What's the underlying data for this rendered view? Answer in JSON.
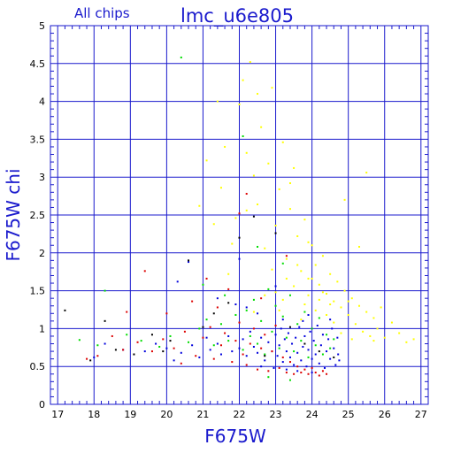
{
  "chart_data": {
    "type": "scatter",
    "subtitle": "All chips",
    "title": "lmc_u6e805",
    "xlabel": "F675W",
    "ylabel": "F675W chi",
    "xlim": [
      16.8,
      27.2
    ],
    "ylim": [
      0,
      5
    ],
    "xticks": [
      17,
      18,
      19,
      20,
      21,
      22,
      23,
      24,
      25,
      26,
      27
    ],
    "yticks": [
      0,
      0.5,
      1,
      1.5,
      2,
      2.5,
      3,
      3.5,
      4,
      4.5,
      5
    ],
    "ytick_labels": [
      "0",
      "0.5",
      "1",
      "1.5",
      "2",
      "2.5",
      "3",
      "3.5",
      "4",
      "4.5",
      "5"
    ],
    "grid": true,
    "colors": {
      "frame": "#1a1acd",
      "grid": "#1a1acd",
      "text": "#1a1acd",
      "series": [
        "#0000dd",
        "#00dd00",
        "#dd0000",
        "#ffff00",
        "#000000"
      ]
    },
    "series": [
      {
        "color": "#0000dd",
        "points": [
          [
            18.0,
            0.62
          ],
          [
            18.3,
            0.8
          ],
          [
            18.8,
            0.72
          ],
          [
            19.4,
            0.7
          ],
          [
            19.7,
            0.8
          ],
          [
            20.0,
            0.74
          ],
          [
            20.4,
            0.68
          ],
          [
            20.7,
            0.78
          ],
          [
            20.9,
            0.62
          ],
          [
            21.2,
            0.72
          ],
          [
            21.4,
            0.8
          ],
          [
            21.5,
            0.66
          ],
          [
            21.7,
            0.9
          ],
          [
            21.8,
            0.7
          ],
          [
            22.0,
            0.74
          ],
          [
            22.1,
            0.86
          ],
          [
            22.2,
            0.64
          ],
          [
            22.3,
            0.96
          ],
          [
            22.4,
            0.76
          ],
          [
            22.5,
            0.68
          ],
          [
            22.6,
            0.88
          ],
          [
            22.7,
            0.58
          ],
          [
            22.8,
            0.82
          ],
          [
            22.9,
            0.7
          ],
          [
            23.0,
            0.92
          ],
          [
            23.05,
            0.64
          ],
          [
            23.1,
            0.78
          ],
          [
            23.15,
            1.0
          ],
          [
            23.2,
            0.56
          ],
          [
            23.25,
            0.86
          ],
          [
            23.3,
            0.7
          ],
          [
            23.35,
            0.94
          ],
          [
            23.4,
            0.62
          ],
          [
            23.45,
            0.8
          ],
          [
            23.5,
            0.52
          ],
          [
            23.55,
            0.88
          ],
          [
            23.6,
            0.68
          ],
          [
            23.65,
            1.02
          ],
          [
            23.7,
            0.58
          ],
          [
            23.75,
            0.76
          ],
          [
            23.8,
            0.9
          ],
          [
            23.85,
            0.5
          ],
          [
            23.9,
            0.72
          ],
          [
            23.95,
            0.96
          ],
          [
            24.0,
            0.6
          ],
          [
            24.05,
            0.84
          ],
          [
            24.1,
            0.66
          ],
          [
            24.15,
            1.04
          ],
          [
            24.2,
            0.54
          ],
          [
            24.25,
            0.78
          ],
          [
            24.3,
            0.92
          ],
          [
            24.35,
            0.48
          ],
          [
            24.4,
            0.7
          ],
          [
            24.45,
            0.86
          ],
          [
            24.5,
            0.6
          ],
          [
            24.55,
            1.0
          ],
          [
            24.6,
            0.74
          ],
          [
            24.65,
            0.52
          ],
          [
            24.7,
            0.88
          ],
          [
            24.72,
            0.66
          ],
          [
            24.75,
            0.58
          ],
          [
            23.3,
            0.46
          ],
          [
            23.6,
            0.44
          ],
          [
            24.0,
            0.42
          ],
          [
            22.6,
            0.5
          ],
          [
            22.95,
            0.48
          ],
          [
            23.75,
            1.1
          ],
          [
            23.2,
            1.12
          ],
          [
            22.5,
            1.2
          ],
          [
            21.9,
            1.32
          ],
          [
            21.4,
            1.4
          ],
          [
            20.3,
            1.62
          ],
          [
            20.6,
            1.88
          ],
          [
            22.0,
            1.92
          ],
          [
            23.0,
            1.56
          ],
          [
            22.2,
            1.28
          ],
          [
            24.5,
            1.12
          ],
          [
            23.9,
            1.18
          ],
          [
            21.1,
            0.88
          ],
          [
            20.2,
            0.58
          ]
        ]
      },
      {
        "color": "#00dd00",
        "points": [
          [
            17.6,
            0.85
          ],
          [
            18.1,
            0.78
          ],
          [
            18.3,
            1.5
          ],
          [
            18.9,
            0.92
          ],
          [
            19.3,
            0.84
          ],
          [
            19.8,
            0.76
          ],
          [
            20.1,
            0.9
          ],
          [
            20.6,
            0.82
          ],
          [
            20.9,
            1.0
          ],
          [
            21.1,
            1.12
          ],
          [
            21.3,
            0.78
          ],
          [
            21.5,
            1.06
          ],
          [
            21.7,
            0.84
          ],
          [
            21.9,
            1.18
          ],
          [
            22.1,
            0.72
          ],
          [
            22.2,
            1.24
          ],
          [
            22.3,
            0.9
          ],
          [
            22.4,
            1.38
          ],
          [
            22.5,
            0.8
          ],
          [
            22.6,
            1.1
          ],
          [
            22.7,
            0.66
          ],
          [
            22.8,
            1.52
          ],
          [
            22.9,
            0.96
          ],
          [
            23.0,
            1.3
          ],
          [
            23.1,
            0.74
          ],
          [
            23.2,
            1.16
          ],
          [
            23.3,
            0.88
          ],
          [
            23.4,
            1.44
          ],
          [
            23.5,
            0.7
          ],
          [
            23.6,
            1.06
          ],
          [
            23.7,
            0.84
          ],
          [
            23.8,
            1.22
          ],
          [
            23.9,
            0.62
          ],
          [
            24.0,
            1.0
          ],
          [
            24.1,
            0.78
          ],
          [
            24.2,
            1.14
          ],
          [
            24.3,
            0.66
          ],
          [
            24.4,
            0.92
          ],
          [
            24.5,
            0.74
          ],
          [
            24.6,
            0.86
          ],
          [
            20.4,
            4.58
          ],
          [
            22.1,
            3.54
          ],
          [
            22.5,
            2.08
          ],
          [
            23.2,
            1.86
          ],
          [
            21.0,
            1.58
          ],
          [
            21.6,
            1.44
          ],
          [
            22.8,
            0.36
          ],
          [
            23.4,
            0.32
          ]
        ]
      },
      {
        "color": "#dd0000",
        "points": [
          [
            17.8,
            0.6
          ],
          [
            18.1,
            0.64
          ],
          [
            18.5,
            0.9
          ],
          [
            18.8,
            0.72
          ],
          [
            19.2,
            0.82
          ],
          [
            19.6,
            0.7
          ],
          [
            19.9,
            0.86
          ],
          [
            20.2,
            0.74
          ],
          [
            20.5,
            0.96
          ],
          [
            20.8,
            0.64
          ],
          [
            21.0,
            0.88
          ],
          [
            21.2,
            1.02
          ],
          [
            21.3,
            0.6
          ],
          [
            21.5,
            0.78
          ],
          [
            21.6,
            0.94
          ],
          [
            21.8,
            0.56
          ],
          [
            21.9,
            0.84
          ],
          [
            22.0,
            1.08
          ],
          [
            22.1,
            0.66
          ],
          [
            22.2,
            0.52
          ],
          [
            22.3,
            0.8
          ],
          [
            22.4,
            1.0
          ],
          [
            22.5,
            0.46
          ],
          [
            22.6,
            0.74
          ],
          [
            22.7,
            0.92
          ],
          [
            22.8,
            0.44
          ],
          [
            22.9,
            0.7
          ],
          [
            23.0,
            1.04
          ],
          [
            23.1,
            0.48
          ],
          [
            23.2,
            0.62
          ],
          [
            23.3,
            0.42
          ],
          [
            23.4,
            0.56
          ],
          [
            23.5,
            0.4
          ],
          [
            23.6,
            0.5
          ],
          [
            23.7,
            0.42
          ],
          [
            23.8,
            0.46
          ],
          [
            23.9,
            0.4
          ],
          [
            24.0,
            0.48
          ],
          [
            24.1,
            0.42
          ],
          [
            24.2,
            0.38
          ],
          [
            24.3,
            0.44
          ],
          [
            24.4,
            0.4
          ],
          [
            20.0,
            1.2
          ],
          [
            20.7,
            1.36
          ],
          [
            21.1,
            1.66
          ],
          [
            21.7,
            1.52
          ],
          [
            22.0,
            2.52
          ],
          [
            22.2,
            2.78
          ],
          [
            19.4,
            1.76
          ],
          [
            18.9,
            1.22
          ],
          [
            22.6,
            1.4
          ],
          [
            23.3,
            1.96
          ],
          [
            21.4,
            1.28
          ],
          [
            20.4,
            0.54
          ]
        ]
      },
      {
        "color": "#ffff00",
        "points": [
          [
            20.9,
            2.62
          ],
          [
            21.1,
            3.22
          ],
          [
            21.3,
            2.38
          ],
          [
            21.5,
            2.86
          ],
          [
            21.7,
            1.72
          ],
          [
            21.9,
            2.46
          ],
          [
            22.0,
            3.96
          ],
          [
            22.1,
            4.28
          ],
          [
            22.2,
            3.32
          ],
          [
            22.3,
            4.52
          ],
          [
            22.4,
            3.02
          ],
          [
            22.5,
            2.64
          ],
          [
            22.6,
            3.66
          ],
          [
            22.7,
            2.06
          ],
          [
            22.8,
            3.18
          ],
          [
            22.9,
            4.18
          ],
          [
            23.0,
            2.36
          ],
          [
            23.1,
            2.84
          ],
          [
            23.2,
            3.46
          ],
          [
            23.3,
            1.92
          ],
          [
            23.4,
            2.58
          ],
          [
            23.5,
            3.12
          ],
          [
            23.6,
            2.22
          ],
          [
            23.7,
            1.76
          ],
          [
            23.8,
            2.44
          ],
          [
            23.9,
            1.66
          ],
          [
            24.0,
            2.1
          ],
          [
            24.1,
            1.84
          ],
          [
            24.2,
            1.58
          ],
          [
            24.3,
            1.96
          ],
          [
            24.4,
            1.46
          ],
          [
            24.5,
            1.72
          ],
          [
            24.6,
            1.36
          ],
          [
            24.7,
            1.62
          ],
          [
            24.8,
            1.28
          ],
          [
            24.9,
            1.5
          ],
          [
            25.0,
            1.18
          ],
          [
            25.1,
            1.4
          ],
          [
            25.2,
            1.06
          ],
          [
            25.3,
            1.3
          ],
          [
            25.4,
            0.96
          ],
          [
            25.5,
            1.22
          ],
          [
            25.6,
            0.9
          ],
          [
            25.7,
            1.14
          ],
          [
            25.8,
            1.0
          ],
          [
            25.9,
            1.28
          ],
          [
            26.0,
            0.88
          ],
          [
            26.2,
            1.08
          ],
          [
            26.4,
            0.94
          ],
          [
            26.6,
            0.82
          ],
          [
            25.5,
            3.06
          ],
          [
            25.3,
            2.08
          ],
          [
            24.9,
            2.7
          ],
          [
            23.9,
            2.14
          ],
          [
            22.4,
            1.22
          ],
          [
            22.7,
            1.44
          ],
          [
            23.1,
            1.24
          ],
          [
            23.5,
            1.56
          ],
          [
            23.8,
            1.32
          ],
          [
            24.1,
            1.24
          ],
          [
            24.4,
            1.18
          ],
          [
            23.3,
            1.66
          ],
          [
            22.9,
            1.78
          ],
          [
            23.7,
            1.12
          ],
          [
            24.6,
            1.08
          ],
          [
            24.8,
            0.94
          ],
          [
            25.1,
            0.86
          ],
          [
            23.0,
            1.48
          ],
          [
            24.3,
            1.48
          ],
          [
            23.6,
            1.84
          ],
          [
            21.8,
            2.12
          ],
          [
            22.2,
            2.56
          ],
          [
            21.4,
            4.0
          ],
          [
            21.6,
            3.4
          ],
          [
            22.5,
            4.1
          ],
          [
            23.4,
            2.92
          ],
          [
            24.0,
            1.66
          ],
          [
            24.5,
            1.32
          ],
          [
            25.0,
            1.36
          ],
          [
            24.2,
            1.38
          ],
          [
            23.2,
            1.38
          ],
          [
            23.9,
            1.44
          ],
          [
            26.8,
            0.86
          ],
          [
            25.7,
            0.84
          ]
        ]
      },
      {
        "color": "#000000",
        "points": [
          [
            17.2,
            1.24
          ],
          [
            17.9,
            0.58
          ],
          [
            18.6,
            0.72
          ],
          [
            19.1,
            0.66
          ],
          [
            19.6,
            0.92
          ],
          [
            20.1,
            0.84
          ],
          [
            20.6,
            1.9
          ],
          [
            21.0,
            1.02
          ],
          [
            21.3,
            1.2
          ],
          [
            21.7,
            1.34
          ],
          [
            22.0,
            2.2
          ],
          [
            22.4,
            2.48
          ],
          [
            23.0,
            2.26
          ],
          [
            23.4,
            1.02
          ],
          [
            23.8,
            0.8
          ],
          [
            22.7,
            0.64
          ],
          [
            18.3,
            1.1
          ],
          [
            19.9,
            0.7
          ],
          [
            24.2,
            0.7
          ],
          [
            24.6,
            0.62
          ]
        ]
      }
    ]
  }
}
